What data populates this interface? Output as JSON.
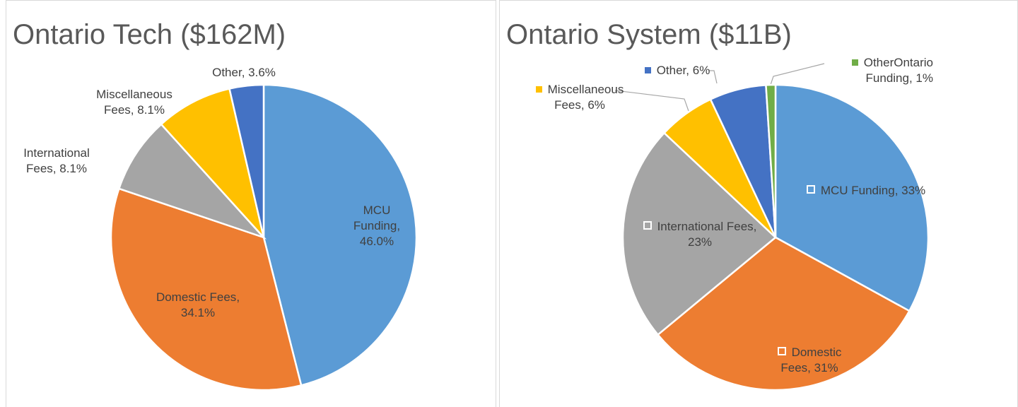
{
  "chart_data": [
    {
      "type": "pie",
      "title": "Ontario Tech ($162M)",
      "categories": [
        "MCU Funding",
        "Domestic Fees",
        "International Fees",
        "Miscellaneous Fees",
        "Other"
      ],
      "values": [
        46.0,
        34.1,
        8.1,
        8.1,
        3.6
      ],
      "value_labels": [
        "46.0%",
        "34.1%",
        "8.1%",
        "8.1%",
        "3.6%"
      ],
      "colors": [
        "#5b9bd5",
        "#ed7d31",
        "#a5a5a5",
        "#ffc000",
        "#4472c4"
      ]
    },
    {
      "type": "pie",
      "title": "Ontario System ($11B)",
      "categories": [
        "MCU Funding",
        "Domestic Fees",
        "International Fees",
        "Miscellaneous Fees",
        "Other",
        "OtherOntario Funding"
      ],
      "values": [
        33,
        31,
        23,
        6,
        6,
        1
      ],
      "value_labels": [
        "33%",
        "31%",
        "23%",
        "6%",
        "6%",
        "1%"
      ],
      "colors": [
        "#5b9bd5",
        "#ed7d31",
        "#a5a5a5",
        "#ffc000",
        "#4472c4",
        "#70ad47"
      ]
    }
  ]
}
